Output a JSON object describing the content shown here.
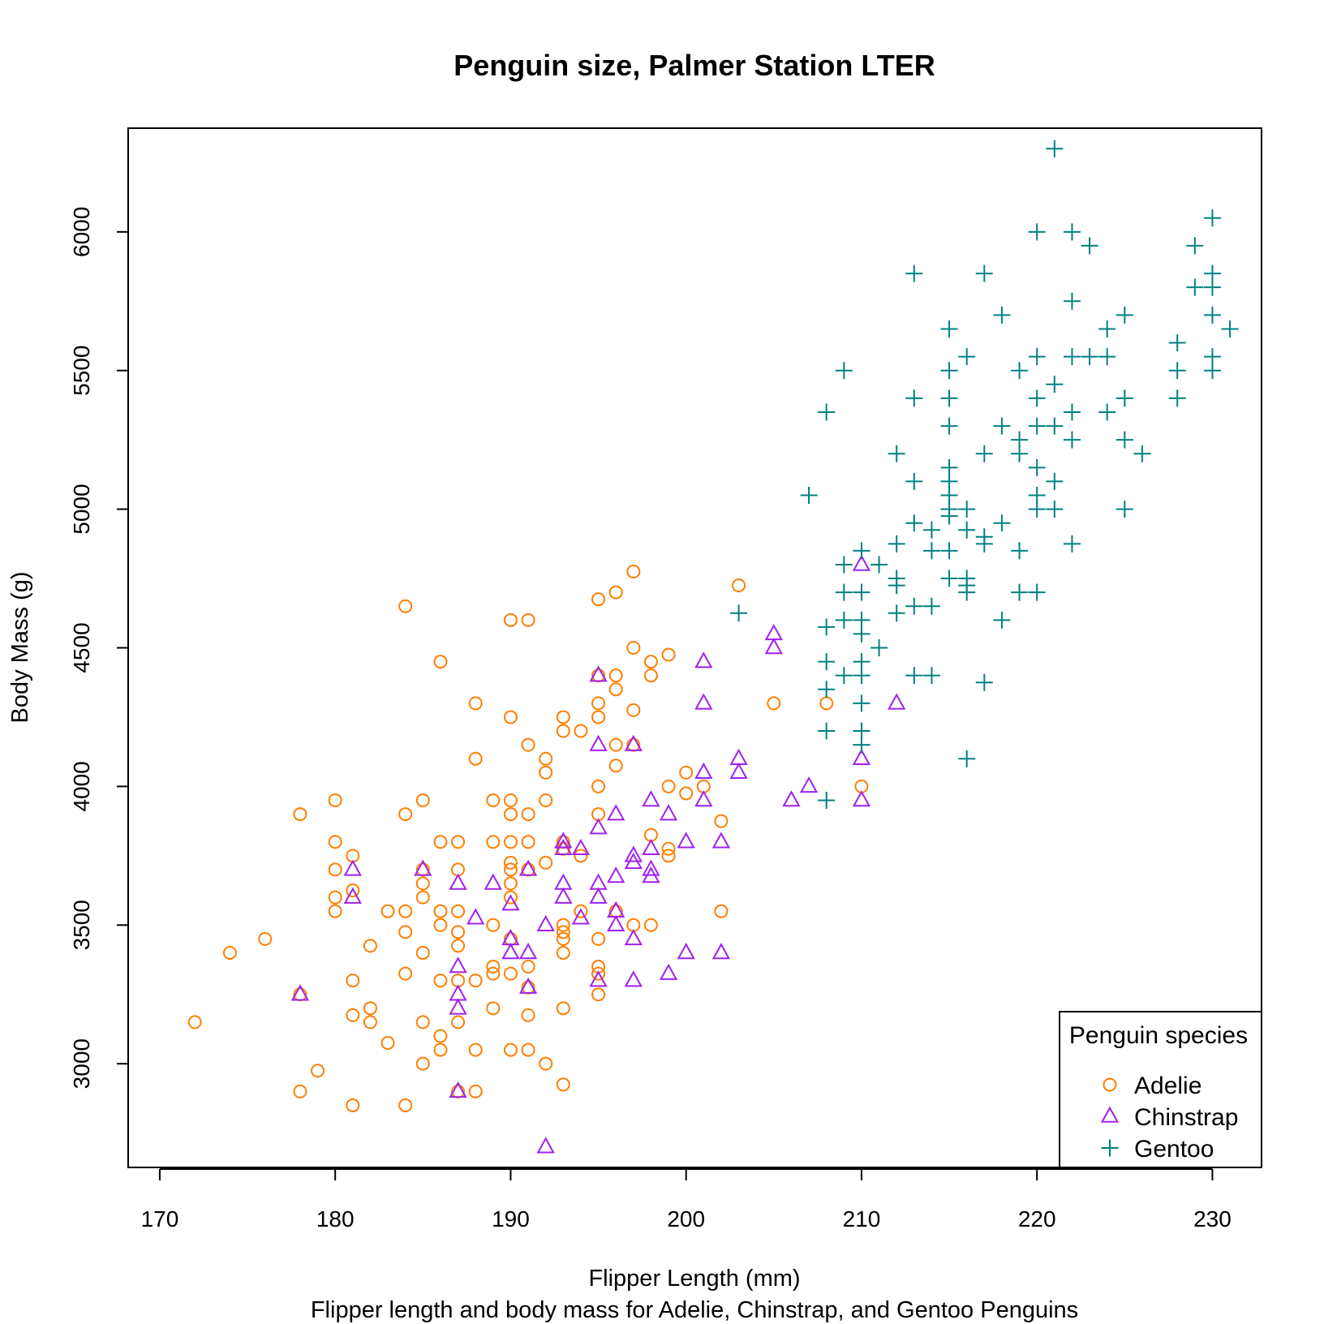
{
  "chart_data": {
    "type": "scatter",
    "title": "Penguin size, Palmer Station LTER",
    "xlabel": "Flipper Length (mm)",
    "ylabel": "Body Mass (g)",
    "caption": "Flipper length and body mass for Adelie, Chinstrap, and Gentoo Penguins",
    "xlim": [
      168.2,
      232.8
    ],
    "ylim": [
      2626,
      6374
    ],
    "xticks": [
      170,
      180,
      190,
      200,
      210,
      220,
      230
    ],
    "yticks": [
      3000,
      3500,
      4000,
      4500,
      5000,
      5500,
      6000
    ],
    "grid": false,
    "legend": {
      "title": "Penguin species",
      "position": "bottom-right"
    },
    "series": [
      {
        "name": "Adelie",
        "marker": "circle",
        "color": "#ff7f00",
        "points": [
          [
            172,
            3150
          ],
          [
            174,
            3400
          ],
          [
            176,
            3450
          ],
          [
            178,
            3900
          ],
          [
            178,
            2900
          ],
          [
            178,
            3250
          ],
          [
            179,
            2975
          ],
          [
            180,
            3950
          ],
          [
            180,
            3800
          ],
          [
            180,
            3700
          ],
          [
            180,
            3600
          ],
          [
            180,
            3550
          ],
          [
            181,
            3750
          ],
          [
            181,
            3625
          ],
          [
            181,
            3300
          ],
          [
            181,
            3175
          ],
          [
            181,
            2850
          ],
          [
            182,
            3425
          ],
          [
            182,
            3200
          ],
          [
            182,
            3150
          ],
          [
            183,
            3550
          ],
          [
            183,
            3075
          ],
          [
            184,
            4650
          ],
          [
            184,
            3900
          ],
          [
            184,
            3550
          ],
          [
            184,
            3475
          ],
          [
            184,
            3325
          ],
          [
            184,
            2850
          ],
          [
            185,
            3950
          ],
          [
            185,
            3700
          ],
          [
            185,
            3650
          ],
          [
            185,
            3600
          ],
          [
            185,
            3400
          ],
          [
            185,
            3150
          ],
          [
            185,
            3000
          ],
          [
            186,
            4450
          ],
          [
            186,
            3800
          ],
          [
            186,
            3550
          ],
          [
            186,
            3500
          ],
          [
            186,
            3300
          ],
          [
            186,
            3100
          ],
          [
            186,
            3050
          ],
          [
            187,
            3800
          ],
          [
            187,
            3700
          ],
          [
            187,
            3550
          ],
          [
            187,
            3475
          ],
          [
            187,
            3425
          ],
          [
            187,
            3300
          ],
          [
            187,
            3150
          ],
          [
            187,
            2900
          ],
          [
            188,
            4300
          ],
          [
            188,
            4100
          ],
          [
            188,
            3300
          ],
          [
            188,
            3050
          ],
          [
            188,
            2900
          ],
          [
            189,
            3950
          ],
          [
            189,
            3800
          ],
          [
            189,
            3500
          ],
          [
            189,
            3350
          ],
          [
            189,
            3325
          ],
          [
            189,
            3200
          ],
          [
            190,
            4600
          ],
          [
            190,
            4250
          ],
          [
            190,
            3950
          ],
          [
            190,
            3900
          ],
          [
            190,
            3800
          ],
          [
            190,
            3725
          ],
          [
            190,
            3700
          ],
          [
            190,
            3650
          ],
          [
            190,
            3600
          ],
          [
            190,
            3450
          ],
          [
            190,
            3325
          ],
          [
            190,
            3050
          ],
          [
            191,
            4600
          ],
          [
            191,
            4150
          ],
          [
            191,
            3900
          ],
          [
            191,
            3800
          ],
          [
            191,
            3700
          ],
          [
            191,
            3350
          ],
          [
            191,
            3275
          ],
          [
            191,
            3175
          ],
          [
            191,
            3050
          ],
          [
            192,
            4100
          ],
          [
            192,
            4050
          ],
          [
            192,
            3950
          ],
          [
            192,
            3725
          ],
          [
            192,
            3000
          ],
          [
            193,
            4250
          ],
          [
            193,
            4200
          ],
          [
            193,
            3800
          ],
          [
            193,
            3775
          ],
          [
            193,
            3500
          ],
          [
            193,
            3475
          ],
          [
            193,
            3450
          ],
          [
            193,
            3400
          ],
          [
            193,
            3200
          ],
          [
            193,
            2925
          ],
          [
            194,
            4200
          ],
          [
            194,
            3750
          ],
          [
            194,
            3550
          ],
          [
            195,
            4675
          ],
          [
            195,
            4400
          ],
          [
            195,
            4300
          ],
          [
            195,
            4250
          ],
          [
            195,
            4000
          ],
          [
            195,
            3900
          ],
          [
            195,
            3450
          ],
          [
            195,
            3350
          ],
          [
            195,
            3325
          ],
          [
            195,
            3250
          ],
          [
            196,
            4700
          ],
          [
            196,
            4400
          ],
          [
            196,
            4350
          ],
          [
            196,
            4150
          ],
          [
            196,
            4075
          ],
          [
            196,
            3550
          ],
          [
            197,
            4775
          ],
          [
            197,
            4500
          ],
          [
            197,
            4275
          ],
          [
            197,
            4150
          ],
          [
            197,
            3500
          ],
          [
            198,
            4450
          ],
          [
            198,
            4400
          ],
          [
            198,
            3825
          ],
          [
            198,
            3500
          ],
          [
            199,
            4475
          ],
          [
            199,
            4000
          ],
          [
            199,
            3775
          ],
          [
            199,
            3750
          ],
          [
            200,
            4050
          ],
          [
            200,
            3975
          ],
          [
            201,
            4000
          ],
          [
            202,
            3875
          ],
          [
            202,
            3550
          ],
          [
            203,
            4725
          ],
          [
            205,
            4300
          ],
          [
            208,
            4300
          ],
          [
            210,
            4000
          ]
        ]
      },
      {
        "name": "Chinstrap",
        "marker": "triangle",
        "color": "#a020f0",
        "points": [
          [
            178,
            3250
          ],
          [
            181,
            3700
          ],
          [
            181,
            3600
          ],
          [
            185,
            3700
          ],
          [
            187,
            3650
          ],
          [
            187,
            3350
          ],
          [
            187,
            3250
          ],
          [
            187,
            3200
          ],
          [
            187,
            2900
          ],
          [
            188,
            3525
          ],
          [
            189,
            3650
          ],
          [
            190,
            3575
          ],
          [
            190,
            3450
          ],
          [
            190,
            3400
          ],
          [
            191,
            3700
          ],
          [
            191,
            3400
          ],
          [
            191,
            3275
          ],
          [
            192,
            3500
          ],
          [
            192,
            2700
          ],
          [
            193,
            3800
          ],
          [
            193,
            3775
          ],
          [
            193,
            3650
          ],
          [
            193,
            3600
          ],
          [
            194,
            3775
          ],
          [
            194,
            3525
          ],
          [
            195,
            4400
          ],
          [
            195,
            4150
          ],
          [
            195,
            3850
          ],
          [
            195,
            3650
          ],
          [
            195,
            3600
          ],
          [
            195,
            3300
          ],
          [
            196,
            3900
          ],
          [
            196,
            3675
          ],
          [
            196,
            3550
          ],
          [
            196,
            3500
          ],
          [
            197,
            4150
          ],
          [
            197,
            3750
          ],
          [
            197,
            3725
          ],
          [
            197,
            3450
          ],
          [
            197,
            3300
          ],
          [
            198,
            3950
          ],
          [
            198,
            3775
          ],
          [
            198,
            3700
          ],
          [
            198,
            3675
          ],
          [
            199,
            3900
          ],
          [
            199,
            3325
          ],
          [
            200,
            3800
          ],
          [
            200,
            3400
          ],
          [
            201,
            4450
          ],
          [
            201,
            4300
          ],
          [
            201,
            4050
          ],
          [
            201,
            3950
          ],
          [
            202,
            3800
          ],
          [
            202,
            3400
          ],
          [
            203,
            4100
          ],
          [
            203,
            4050
          ],
          [
            205,
            4550
          ],
          [
            205,
            4500
          ],
          [
            206,
            3950
          ],
          [
            207,
            4000
          ],
          [
            210,
            4800
          ],
          [
            210,
            4100
          ],
          [
            210,
            3950
          ],
          [
            212,
            4300
          ]
        ]
      },
      {
        "name": "Gentoo",
        "marker": "plus",
        "color": "#008080",
        "points": [
          [
            203,
            4625
          ],
          [
            207,
            5050
          ],
          [
            208,
            5350
          ],
          [
            208,
            4575
          ],
          [
            208,
            4450
          ],
          [
            208,
            4350
          ],
          [
            208,
            4200
          ],
          [
            208,
            3950
          ],
          [
            209,
            5500
          ],
          [
            209,
            4800
          ],
          [
            209,
            4700
          ],
          [
            209,
            4600
          ],
          [
            209,
            4400
          ],
          [
            210,
            4850
          ],
          [
            210,
            4700
          ],
          [
            210,
            4600
          ],
          [
            210,
            4550
          ],
          [
            210,
            4450
          ],
          [
            210,
            4400
          ],
          [
            210,
            4300
          ],
          [
            210,
            4200
          ],
          [
            210,
            4150
          ],
          [
            211,
            4800
          ],
          [
            211,
            4500
          ],
          [
            212,
            5200
          ],
          [
            212,
            4875
          ],
          [
            212,
            4750
          ],
          [
            212,
            4725
          ],
          [
            212,
            4625
          ],
          [
            213,
            5850
          ],
          [
            213,
            5400
          ],
          [
            213,
            5100
          ],
          [
            213,
            4950
          ],
          [
            213,
            4650
          ],
          [
            213,
            4400
          ],
          [
            214,
            4925
          ],
          [
            214,
            4850
          ],
          [
            214,
            4650
          ],
          [
            214,
            4400
          ],
          [
            215,
            5650
          ],
          [
            215,
            5500
          ],
          [
            215,
            5400
          ],
          [
            215,
            5300
          ],
          [
            215,
            5150
          ],
          [
            215,
            5100
          ],
          [
            215,
            5050
          ],
          [
            215,
            5000
          ],
          [
            215,
            4975
          ],
          [
            215,
            4850
          ],
          [
            215,
            4750
          ],
          [
            216,
            5550
          ],
          [
            216,
            5000
          ],
          [
            216,
            4925
          ],
          [
            216,
            4750
          ],
          [
            216,
            4725
          ],
          [
            216,
            4700
          ],
          [
            216,
            4100
          ],
          [
            217,
            5850
          ],
          [
            217,
            5200
          ],
          [
            217,
            4900
          ],
          [
            217,
            4875
          ],
          [
            217,
            4375
          ],
          [
            218,
            5700
          ],
          [
            218,
            5300
          ],
          [
            218,
            4950
          ],
          [
            218,
            4600
          ],
          [
            219,
            5500
          ],
          [
            219,
            5250
          ],
          [
            219,
            5200
          ],
          [
            219,
            4850
          ],
          [
            219,
            4700
          ],
          [
            220,
            6000
          ],
          [
            220,
            5550
          ],
          [
            220,
            5400
          ],
          [
            220,
            5300
          ],
          [
            220,
            5150
          ],
          [
            220,
            5050
          ],
          [
            220,
            5000
          ],
          [
            220,
            4700
          ],
          [
            221,
            6300
          ],
          [
            221,
            5450
          ],
          [
            221,
            5300
          ],
          [
            221,
            5100
          ],
          [
            221,
            5000
          ],
          [
            222,
            6000
          ],
          [
            222,
            5750
          ],
          [
            222,
            5550
          ],
          [
            222,
            5350
          ],
          [
            222,
            5250
          ],
          [
            222,
            4875
          ],
          [
            223,
            5950
          ],
          [
            223,
            5550
          ],
          [
            224,
            5650
          ],
          [
            224,
            5550
          ],
          [
            224,
            5350
          ],
          [
            225,
            5700
          ],
          [
            225,
            5400
          ],
          [
            225,
            5250
          ],
          [
            225,
            5000
          ],
          [
            226,
            5200
          ],
          [
            228,
            5600
          ],
          [
            228,
            5500
          ],
          [
            228,
            5400
          ],
          [
            229,
            5950
          ],
          [
            229,
            5800
          ],
          [
            230,
            6050
          ],
          [
            230,
            5850
          ],
          [
            230,
            5800
          ],
          [
            230,
            5700
          ],
          [
            230,
            5550
          ],
          [
            230,
            5500
          ],
          [
            231,
            5650
          ]
        ]
      }
    ]
  }
}
